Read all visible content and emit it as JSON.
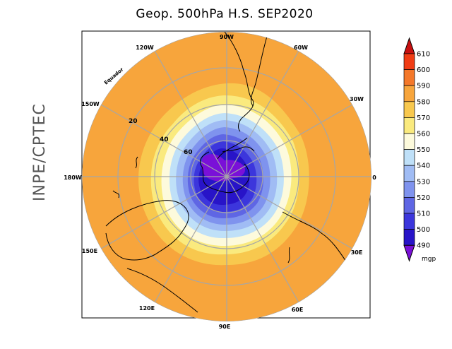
{
  "title": "Geop. 500hPa H.S. SEP2020",
  "side_label": "INPE/CPTEC",
  "equator_label": "Equador",
  "longitude_labels": {
    "top": "90W",
    "top_left": "120W",
    "top_right": "60W",
    "upper_left": "150W",
    "upper_right": "30W",
    "left": "180W",
    "right": "0",
    "lower_left": "150E",
    "lower_right": "30E",
    "bottom_left": "120E",
    "bottom_right": "60E",
    "bottom": "90E"
  },
  "latitude_labels": [
    "20",
    "40",
    "60"
  ],
  "colorbar": {
    "unit": "mgp",
    "levels": [
      "610",
      "600",
      "590",
      "580",
      "570",
      "560",
      "550",
      "540",
      "530",
      "520",
      "510",
      "500",
      "490"
    ],
    "colors": [
      "#c81010",
      "#f03c14",
      "#f4782a",
      "#f7a53c",
      "#f8c84e",
      "#faea7e",
      "#fdfadc",
      "#bfe0f8",
      "#a0bcf4",
      "#7f93ee",
      "#5f66e4",
      "#3c36dc",
      "#2814c8",
      "#7a10d8"
    ]
  }
}
